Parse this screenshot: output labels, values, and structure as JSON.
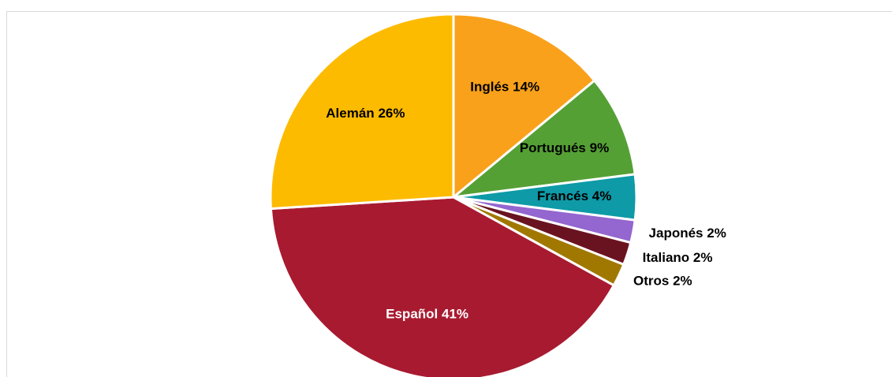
{
  "chart_data": {
    "type": "pie",
    "categories": [
      "Inglés",
      "Portugués",
      "Francés",
      "Japonés",
      "Italiano",
      "Otros",
      "Español",
      "Alemán"
    ],
    "values": [
      14,
      9,
      4,
      2,
      2,
      2,
      41,
      26
    ],
    "value_labels": [
      "14%",
      "9%",
      "4%",
      "2%",
      "2%",
      "2%",
      "41%",
      "26%"
    ],
    "colors": [
      "#f9a11b",
      "#55a035",
      "#0e9aa7",
      "#9466cf",
      "#6a1320",
      "#a07800",
      "#a81a30",
      "#fdbb00"
    ]
  }
}
